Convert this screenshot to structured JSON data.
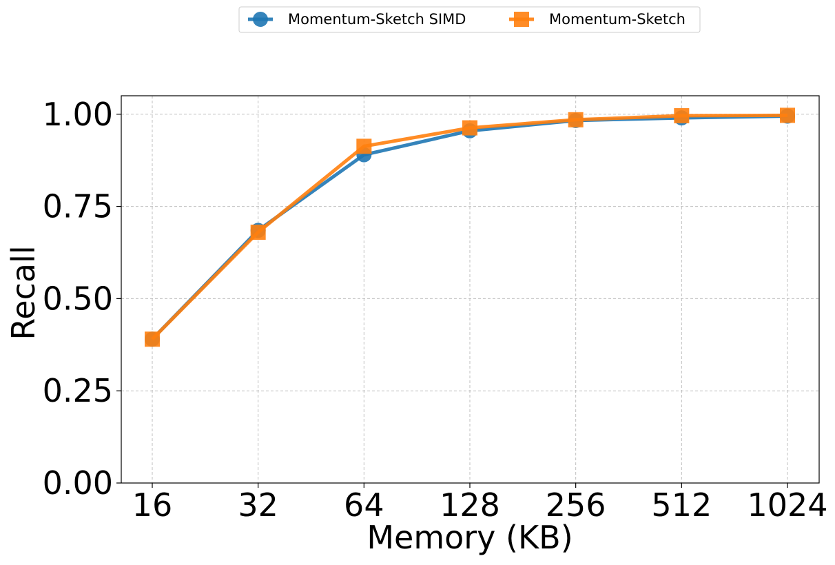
{
  "chart_data": {
    "type": "line",
    "title": "",
    "xlabel": "Memory (KB)",
    "ylabel": "Recall",
    "categories": [
      "16",
      "32",
      "64",
      "128",
      "256",
      "512",
      "1024"
    ],
    "ylim": [
      0,
      1.05
    ],
    "yticks": [
      "0.00",
      "0.25",
      "0.50",
      "0.75",
      "1.00"
    ],
    "ytick_values": [
      0,
      0.25,
      0.5,
      0.75,
      1.0
    ],
    "grid": true,
    "legend_position": "top-center",
    "series": [
      {
        "name": "Momentum-Sketch SIMD",
        "marker": "circle",
        "color": "#1f77b4",
        "values": [
          0.39,
          0.685,
          0.89,
          0.955,
          0.983,
          0.99,
          0.995
        ]
      },
      {
        "name": "Momentum-Sketch",
        "marker": "square",
        "color": "#ff7f0e",
        "values": [
          0.39,
          0.68,
          0.913,
          0.963,
          0.985,
          0.996,
          0.997
        ]
      }
    ]
  }
}
